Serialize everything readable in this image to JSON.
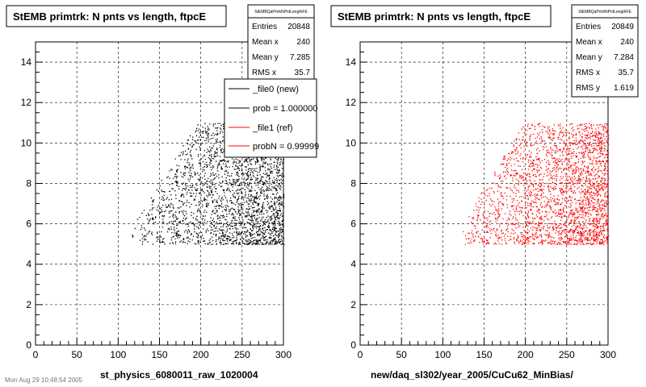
{
  "footer_text": "Mon Aug 29 10:48:54 2005",
  "legend": {
    "entries": [
      "_file0 (new)",
      "prob = 1.000000",
      "_file1 (ref)",
      "probN = 0.99999"
    ],
    "colors": [
      "#000000",
      "#000000",
      "#ff0000",
      "#ff0000"
    ]
  },
  "chart_data": [
    {
      "type": "scatter",
      "title": "StEMB primtrk: N pnts vs length, ftpcE",
      "xlabel": "st_physics_6080011_raw_1020004",
      "ylabel": "",
      "xlim": [
        0,
        300
      ],
      "ylim": [
        0,
        15
      ],
      "x_ticks": [
        "0",
        "50",
        "100",
        "150",
        "200",
        "250",
        "300"
      ],
      "y_ticks": [
        "0",
        "2",
        "4",
        "6",
        "8",
        "10",
        "12",
        "14"
      ],
      "grid": true,
      "marker_color": "#000000",
      "stats": {
        "name": "StEMBQaPrtrkNPntLengthFE",
        "rows": [
          {
            "label": "Entries",
            "value": "20848"
          },
          {
            "label": "Mean x",
            "value": "240"
          },
          {
            "label": "Mean y",
            "value": "7.285"
          },
          {
            "label": "RMS x",
            "value": "35.7"
          }
        ]
      },
      "distribution": {
        "x_min": 115,
        "x_max": 300,
        "y_min": 5,
        "y_max": 11,
        "mean_x": 240,
        "mean_y": 7.285,
        "entries": 20848
      }
    },
    {
      "type": "scatter",
      "title": "StEMB primtrk: N pnts vs length, ftpcE",
      "xlabel": "new/daq_sl302/year_2005/CuCu62_MinBias/",
      "ylabel": "",
      "xlim": [
        0,
        300
      ],
      "ylim": [
        0,
        15
      ],
      "x_ticks": [
        "0",
        "50",
        "100",
        "150",
        "200",
        "250",
        "300"
      ],
      "y_ticks": [
        "0",
        "2",
        "4",
        "6",
        "8",
        "10",
        "12",
        "14"
      ],
      "grid": true,
      "marker_color": "#ff0000",
      "stats": {
        "name": "StEMBQaPrtrkNPntLengthFE",
        "rows": [
          {
            "label": "Entries",
            "value": "20849"
          },
          {
            "label": "Mean x",
            "value": "240"
          },
          {
            "label": "Mean y",
            "value": "7.284"
          },
          {
            "label": "RMS x",
            "value": "35.7"
          },
          {
            "label": "RMS y",
            "value": "1.619"
          }
        ]
      },
      "distribution": {
        "x_min": 120,
        "x_max": 300,
        "y_min": 5,
        "y_max": 11,
        "mean_x": 240,
        "mean_y": 7.284,
        "entries": 20849
      }
    }
  ]
}
